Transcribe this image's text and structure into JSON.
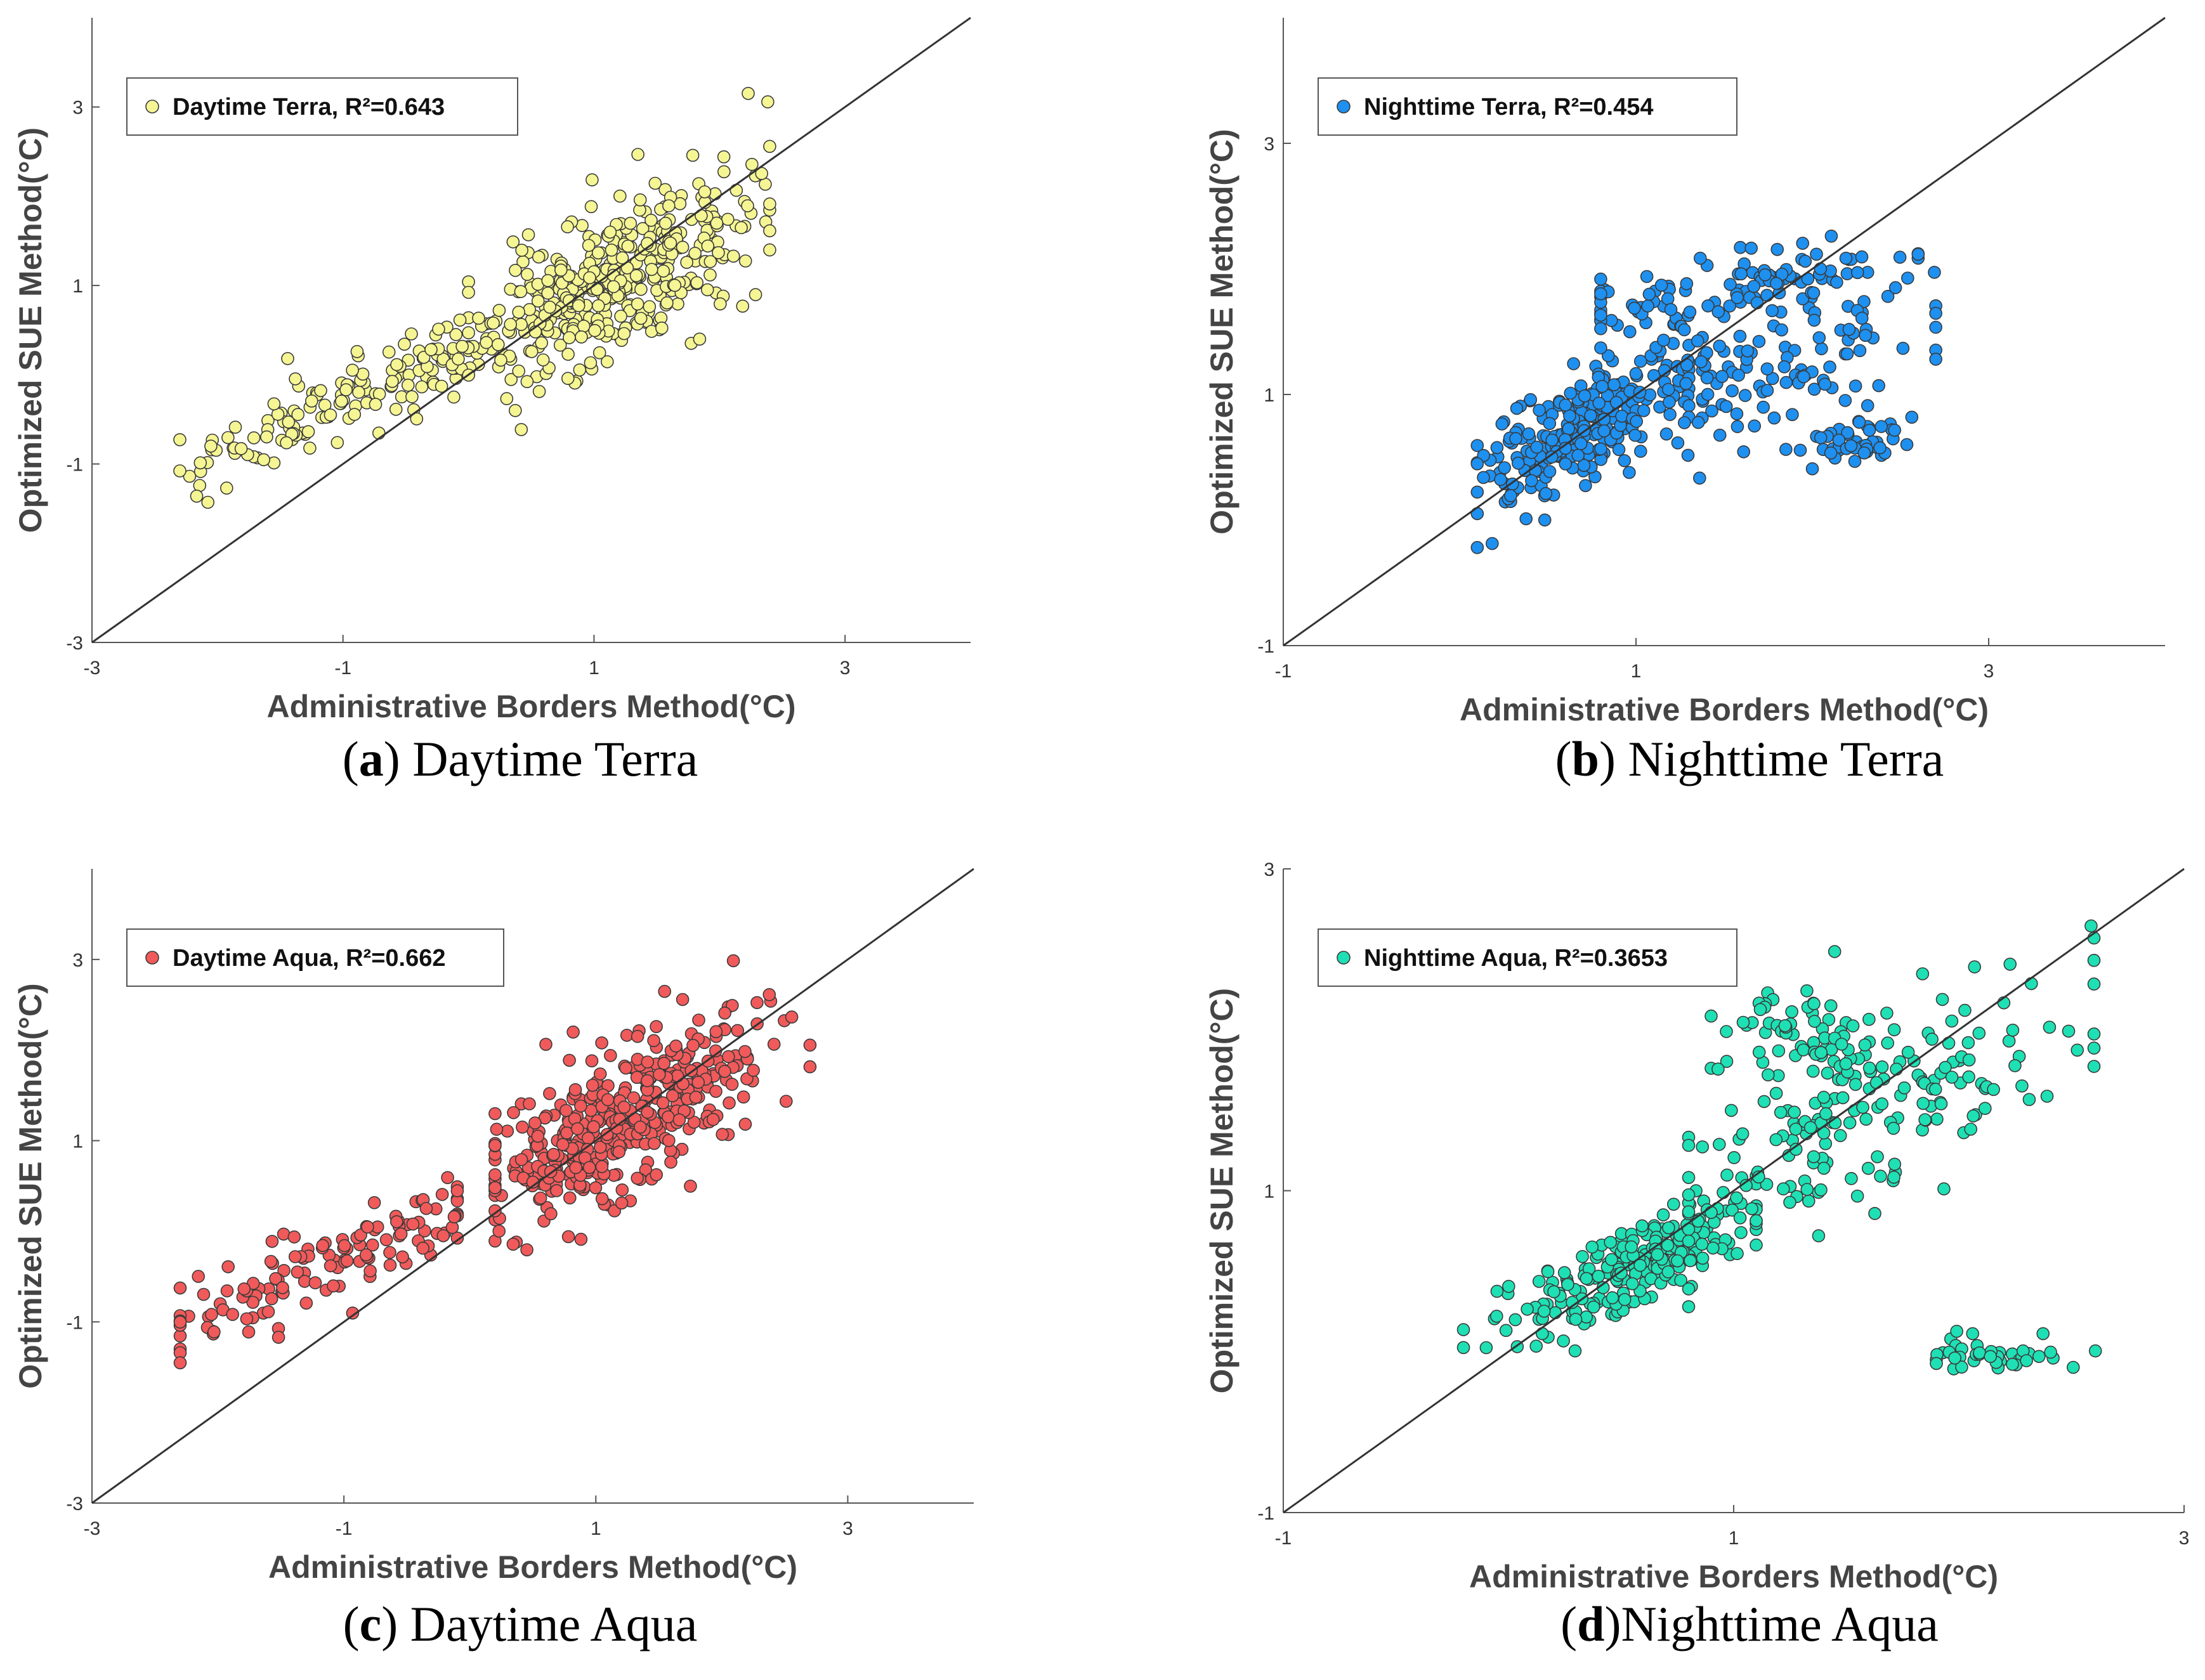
{
  "chart_data": [
    {
      "type": "scatter",
      "panel_id": "a",
      "caption_letter": "a",
      "caption_text": ") Daytime Terra",
      "xlabel": "Administrative Borders Method(°C)",
      "ylabel": "Optimized SUE Method(°C)",
      "xlim": [
        -3,
        4
      ],
      "ylim": [
        -3,
        4
      ],
      "xticks": [
        -3,
        -1,
        1,
        3
      ],
      "yticks": [
        -3,
        -1,
        1,
        3
      ],
      "xtick_labels": [
        "-3",
        "-1",
        "1",
        "3"
      ],
      "ytick_labels": [
        "-3",
        "-1",
        "1",
        "3"
      ],
      "legend": {
        "label": "Daytime Terra, R²=0.643",
        "position": "top-left"
      },
      "reference_line": "y = x",
      "marker_color": "#f5f594",
      "n_points": 560,
      "seed": 11,
      "clusters": [
        {
          "weight": 0.72,
          "xmean": 1.15,
          "xsd": 0.52,
          "slope": 0.62,
          "intercept": 0.32,
          "noise": 0.42,
          "xmin": 0.0,
          "xmax": 2.4
        },
        {
          "weight": 0.18,
          "xmean": -1.2,
          "xsd": 0.6,
          "slope": 0.6,
          "intercept": 0.35,
          "noise": 0.22,
          "xmin": -2.3,
          "xmax": -0.1
        },
        {
          "weight": 0.1,
          "xmean": -0.2,
          "xsd": 0.3,
          "slope": 0.6,
          "intercept": 0.3,
          "noise": 0.25,
          "xmin": -0.8,
          "xmax": 0.4
        }
      ]
    },
    {
      "type": "scatter",
      "panel_id": "b",
      "caption_letter": "b",
      "caption_text": ") Nighttime Terra",
      "xlabel": "Administrative Borders Method(°C)",
      "ylabel": "Optimized SUE Method(°C)",
      "xlim": [
        -1,
        4
      ],
      "ylim": [
        -1,
        4
      ],
      "xticks": [
        -1,
        1,
        3
      ],
      "yticks": [
        -1,
        1,
        3
      ],
      "xtick_labels": [
        "-1",
        "1",
        "3"
      ],
      "ytick_labels": [
        "-1",
        "1",
        "3"
      ],
      "legend": {
        "label": "Nighttime Terra, R²=0.454",
        "position": "top-left"
      },
      "reference_line": "y = x",
      "marker_color": "#1e90f0",
      "n_points": 520,
      "seed": 23,
      "clusters": [
        {
          "weight": 0.45,
          "xmean": 0.65,
          "xsd": 0.3,
          "slope": 0.75,
          "intercept": 0.2,
          "noise": 0.22,
          "xmin": 0.1,
          "xmax": 1.3
        },
        {
          "weight": 0.22,
          "xmean": 1.5,
          "xsd": 0.5,
          "slope": 0.2,
          "intercept": 1.5,
          "noise": 0.15,
          "xmin": 0.8,
          "xmax": 2.6
        },
        {
          "weight": 0.25,
          "xmean": 1.6,
          "xsd": 0.45,
          "slope": 0.3,
          "intercept": 0.7,
          "noise": 0.28,
          "xmin": 0.6,
          "xmax": 2.7
        },
        {
          "weight": 0.08,
          "xmean": 2.3,
          "xsd": 0.15,
          "slope": 0.0,
          "intercept": 0.6,
          "noise": 0.08,
          "xmin": 2.0,
          "xmax": 2.65
        }
      ]
    },
    {
      "type": "scatter",
      "panel_id": "c",
      "caption_letter": "c",
      "caption_text": ") Daytime Aqua",
      "xlabel": "Administrative Borders Method(°C)",
      "ylabel": "Optimized SUE Method(°C)",
      "xlim": [
        -3,
        4
      ],
      "ylim": [
        -3,
        4
      ],
      "xticks": [
        -3,
        -1,
        1,
        3
      ],
      "yticks": [
        -3,
        -1,
        1,
        3
      ],
      "xtick_labels": [
        "-3",
        "-1",
        "1",
        "3"
      ],
      "ytick_labels": [
        "-3",
        "-1",
        "1",
        "3"
      ],
      "legend": {
        "label": "Daytime Aqua, R²=0.662",
        "position": "top-left"
      },
      "reference_line": "y = x",
      "marker_color": "#f05a5a",
      "n_points": 560,
      "seed": 37,
      "clusters": [
        {
          "weight": 0.76,
          "xmean": 1.25,
          "xsd": 0.55,
          "slope": 0.7,
          "intercept": 0.4,
          "noise": 0.4,
          "xmin": 0.2,
          "xmax": 2.7
        },
        {
          "weight": 0.24,
          "xmean": -1.1,
          "xsd": 0.7,
          "slope": 0.6,
          "intercept": 0.3,
          "noise": 0.22,
          "xmin": -2.3,
          "xmax": -0.1
        }
      ]
    },
    {
      "type": "scatter",
      "panel_id": "d",
      "caption_letter": "d",
      "caption_text": ")Nighttime Aqua",
      "xlabel": "Administrative Borders Method(°C)",
      "ylabel": "Optimized SUE Method(°C)",
      "xlim": [
        -1,
        3
      ],
      "ylim": [
        -1,
        3
      ],
      "xticks": [
        -1,
        1,
        3
      ],
      "yticks": [
        -1,
        1,
        3
      ],
      "xtick_labels": [
        "-1",
        "1",
        "3"
      ],
      "ytick_labels": [
        "-1",
        "1",
        "3"
      ],
      "legend": {
        "label": "Nighttime Aqua, R²=0.3653",
        "position": "top-left"
      },
      "reference_line": "y = x",
      "marker_color": "#1fe0b4",
      "n_points": 520,
      "seed": 53,
      "clusters": [
        {
          "weight": 0.45,
          "xmean": 0.55,
          "xsd": 0.28,
          "slope": 0.6,
          "intercept": 0.2,
          "noise": 0.13,
          "xmin": -0.2,
          "xmax": 1.1
        },
        {
          "weight": 0.35,
          "xmean": 1.6,
          "xsd": 0.45,
          "slope": 0.55,
          "intercept": 0.6,
          "noise": 0.3,
          "xmin": 0.8,
          "xmax": 2.6
        },
        {
          "weight": 0.12,
          "xmean": 1.3,
          "xsd": 0.2,
          "slope": 0.0,
          "intercept": 2.0,
          "noise": 0.15,
          "xmin": 0.9,
          "xmax": 1.8
        },
        {
          "weight": 0.08,
          "xmean": 2.2,
          "xsd": 0.2,
          "slope": 0.0,
          "intercept": 0.0,
          "noise": 0.06,
          "xmin": 1.9,
          "xmax": 2.95
        }
      ]
    }
  ]
}
